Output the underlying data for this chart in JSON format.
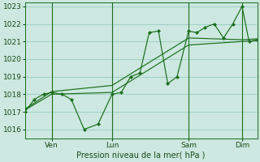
{
  "xlabel": "Pression niveau de la mer( hPa )",
  "ylim": [
    1015.5,
    1023.2
  ],
  "yticks": [
    1016,
    1017,
    1018,
    1019,
    1020,
    1021,
    1022,
    1023
  ],
  "background_color": "#cce8e0",
  "grid_color": "#99ccbf",
  "line_color": "#1a6e1a",
  "tick_label_color": "#1a4a1a",
  "axis_label_color": "#1a4a1a",
  "day_positions": [
    0.115,
    0.375,
    0.705,
    0.935
  ],
  "day_labels": [
    "Ven",
    "Lun",
    "Sam",
    "Dim"
  ],
  "series_main_x": [
    0.0,
    0.04,
    0.08,
    0.115,
    0.16,
    0.2,
    0.255,
    0.315,
    0.375,
    0.415,
    0.455,
    0.495,
    0.535,
    0.575,
    0.615,
    0.655,
    0.705,
    0.74,
    0.775,
    0.815,
    0.855,
    0.895,
    0.935,
    0.965,
    1.0
  ],
  "series_main_y": [
    1017.0,
    1017.7,
    1018.0,
    1018.1,
    1018.0,
    1017.7,
    1016.0,
    1016.3,
    1018.0,
    1018.1,
    1019.0,
    1019.2,
    1021.5,
    1021.6,
    1018.6,
    1019.0,
    1021.6,
    1021.5,
    1021.8,
    1022.0,
    1021.2,
    1022.0,
    1023.0,
    1021.0,
    1021.1
  ],
  "series_line2_x": [
    0.0,
    0.115,
    0.375,
    0.705,
    0.935,
    1.0
  ],
  "series_line2_y": [
    1017.1,
    1018.0,
    1018.1,
    1020.8,
    1021.0,
    1021.05
  ],
  "series_line3_x": [
    0.0,
    0.115,
    0.375,
    0.705,
    0.935,
    1.0
  ],
  "series_line3_y": [
    1017.15,
    1018.15,
    1018.5,
    1021.2,
    1021.1,
    1021.15
  ],
  "xlim": [
    0.0,
    1.0
  ]
}
